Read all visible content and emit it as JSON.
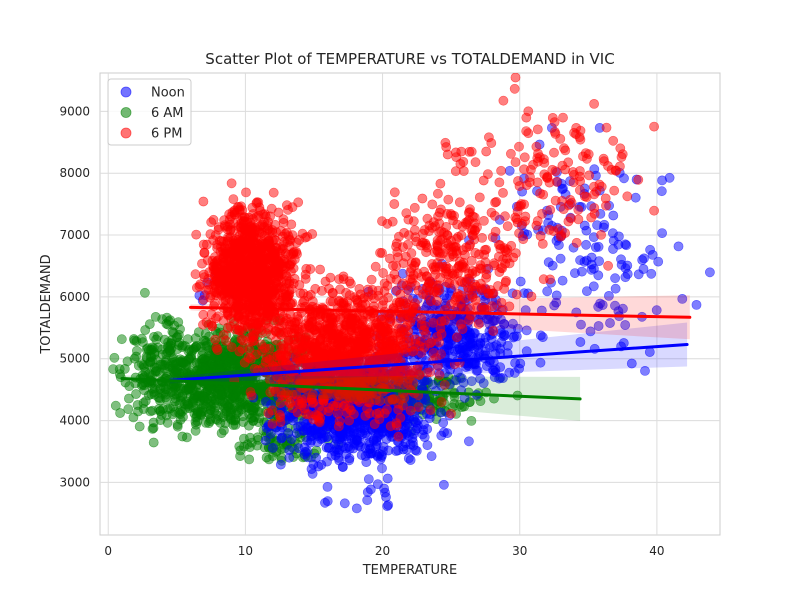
{
  "chart_data": {
    "type": "scatter",
    "title": "Scatter Plot of TEMPERATURE vs TOTALDEMAND in VIC",
    "xlabel": "TEMPERATURE",
    "ylabel": "TOTALDEMAND",
    "xlim": [
      -0.6,
      44.6
    ],
    "ylim": [
      2150,
      9620
    ],
    "xticks": [
      0,
      10,
      20,
      30,
      40
    ],
    "yticks": [
      3000,
      4000,
      5000,
      6000,
      7000,
      8000,
      9000
    ],
    "grid": true,
    "legend_position": "top-left",
    "series": [
      {
        "name": "Noon",
        "color": "#0000ff",
        "regression": {
          "x": [
            4.5,
            42.2
          ],
          "y": [
            4650,
            5230
          ]
        },
        "clusters": [
          {
            "cx": [
              12,
              24
            ],
            "cy": [
              3300,
              5000
            ],
            "n": 800
          },
          {
            "cx": [
              20,
              30
            ],
            "cy": [
              4500,
              6300
            ],
            "n": 400
          },
          {
            "cx": [
              28,
              42
            ],
            "cy": [
              5000,
              8500
            ],
            "n": 150
          },
          {
            "cx": [
              5,
              12
            ],
            "cy": [
              5800,
              6500
            ],
            "n": 8
          },
          {
            "cx": [
              15,
              22
            ],
            "cy": [
              2500,
              3100
            ],
            "n": 15
          }
        ]
      },
      {
        "name": "6 AM",
        "color": "#008000",
        "regression": {
          "x": [
            1.0,
            34.4
          ],
          "y": [
            4680,
            4350
          ]
        },
        "clusters": [
          {
            "cx": [
              2,
              16
            ],
            "cy": [
              3800,
              5500
            ],
            "n": 1000
          },
          {
            "cx": [
              1,
              6
            ],
            "cy": [
              4100,
              5800
            ],
            "n": 90
          },
          {
            "cx": [
              14,
              28
            ],
            "cy": [
              3900,
              4900
            ],
            "n": 200
          },
          {
            "cx": [
              9,
              16
            ],
            "cy": [
              3300,
              3900
            ],
            "n": 60
          }
        ]
      },
      {
        "name": "6 PM",
        "color": "#ff0000",
        "regression": {
          "x": [
            6.0,
            42.4
          ],
          "y": [
            5830,
            5670
          ]
        },
        "clusters": [
          {
            "cx": [
              7,
              14
            ],
            "cy": [
              5300,
              7500
            ],
            "n": 1000
          },
          {
            "cx": [
              11,
              24
            ],
            "cy": [
              4000,
              6200
            ],
            "n": 1100
          },
          {
            "cx": [
              20,
              30
            ],
            "cy": [
              5500,
              7600
            ],
            "n": 300
          },
          {
            "cx": [
              27,
              39
            ],
            "cy": [
              6600,
              9200
            ],
            "n": 150
          },
          {
            "cx": [
              24,
              27
            ],
            "cy": [
              7800,
              8600
            ],
            "n": 12
          }
        ]
      }
    ]
  }
}
